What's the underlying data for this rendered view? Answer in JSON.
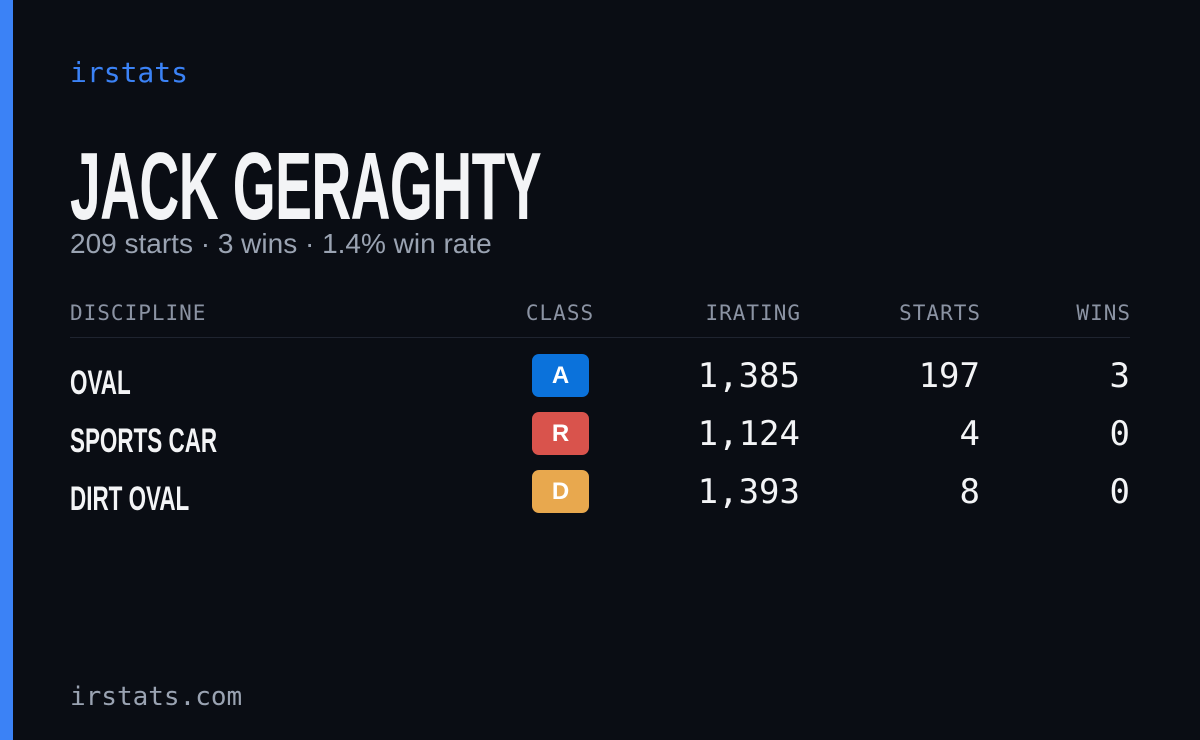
{
  "brand": "irstats",
  "driver": {
    "name": "JACK GERAGHTY",
    "summary": "209 starts · 3 wins · 1.4% win rate"
  },
  "table": {
    "headers": [
      "DISCIPLINE",
      "CLASS",
      "IRATING",
      "STARTS",
      "WINS"
    ],
    "rows": [
      {
        "discipline": "OVAL",
        "class": "A",
        "class_color": "#0b72db",
        "irating": "1,385",
        "starts": "197",
        "wins": "3"
      },
      {
        "discipline": "SPORTS CAR",
        "class": "R",
        "class_color": "#d9534c",
        "irating": "1,124",
        "starts": "4",
        "wins": "0"
      },
      {
        "discipline": "DIRT OVAL",
        "class": "D",
        "class_color": "#e8a84e",
        "irating": "1,393",
        "starts": "8",
        "wins": "0"
      }
    ]
  },
  "footer": "irstats.com"
}
